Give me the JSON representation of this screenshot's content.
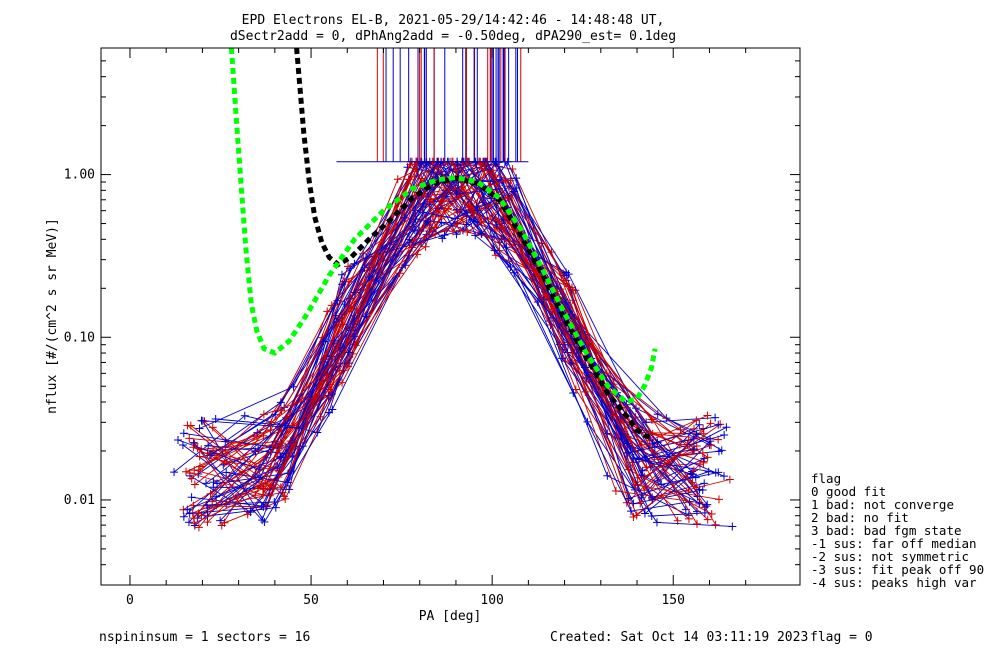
{
  "chart_data": {
    "type": "line",
    "title": "EPD Electrons EL-B, 2021-05-29/14:42:46 - 14:48:48 UT,",
    "subtitle": "dSectr2add = 0, dPhAng2add = -0.50deg, dPA290_est=   0.1deg",
    "xlabel": "PA [deg]",
    "ylabel": "nflux [#/(cm^2 s sr MeV)]",
    "xlim": [
      -8,
      185
    ],
    "ylim": [
      0.003,
      6.0
    ],
    "yscale": "log",
    "x_ticks": [
      0,
      50,
      100,
      150
    ],
    "x_tick_labels": [
      "0",
      "50",
      "100",
      "150"
    ],
    "y_ticks": [
      0.01,
      0.1,
      1.0
    ],
    "y_tick_labels": [
      "0.01",
      "0.10",
      "1.00"
    ],
    "grid": false,
    "series": [
      {
        "name": "fit (black dashed)",
        "color": "#000000",
        "style": "dashed",
        "x": [
          46,
          48,
          49.5,
          51,
          53,
          55,
          57.5,
          61,
          66,
          72,
          78,
          84,
          90,
          96,
          102,
          108,
          114,
          120,
          126,
          132,
          137,
          140,
          142,
          144
        ],
        "y": [
          6.0,
          1.8,
          0.9,
          0.55,
          0.38,
          0.31,
          0.28,
          0.31,
          0.4,
          0.53,
          0.72,
          0.88,
          0.95,
          0.88,
          0.7,
          0.42,
          0.24,
          0.13,
          0.075,
          0.045,
          0.033,
          0.027,
          0.025,
          0.024
        ]
      },
      {
        "name": "fit (green dashed)",
        "color": "#00ff00",
        "style": "dashed",
        "x": [
          28,
          29.5,
          31,
          32,
          33.5,
          35,
          37,
          40,
          44,
          49,
          55,
          62,
          70,
          78,
          85,
          90,
          96,
          102,
          108,
          114,
          120,
          126,
          132,
          137,
          140,
          142,
          144,
          145
        ],
        "y": [
          6.0,
          2.0,
          0.7,
          0.35,
          0.16,
          0.11,
          0.085,
          0.08,
          0.095,
          0.14,
          0.24,
          0.4,
          0.6,
          0.82,
          0.93,
          0.96,
          0.9,
          0.72,
          0.46,
          0.26,
          0.14,
          0.08,
          0.05,
          0.04,
          0.042,
          0.05,
          0.065,
          0.085
        ]
      }
    ]
  },
  "footer": {
    "left": "nspininsum =  1  sectors = 16",
    "created": "Created: Sat Oct 14 03:11:19 2023",
    "flag": "flag = 0"
  },
  "legend": {
    "title": "flag",
    "items": [
      " 0 good fit",
      " 1 bad: not converge",
      " 2 bad: no fit",
      " 3 bad: bad fgm state",
      "-1 sus: far off median",
      "-2 sus: not symmetric",
      "-3 sus: fit peak off 90",
      "-4 sus: peaks high var"
    ]
  },
  "colors": {
    "background": "#ffffff",
    "axes": "#000000",
    "data_red": "#cc0000",
    "data_blue": "#0000cc",
    "fit_black": "#000000",
    "fit_green": "#00ff00"
  }
}
